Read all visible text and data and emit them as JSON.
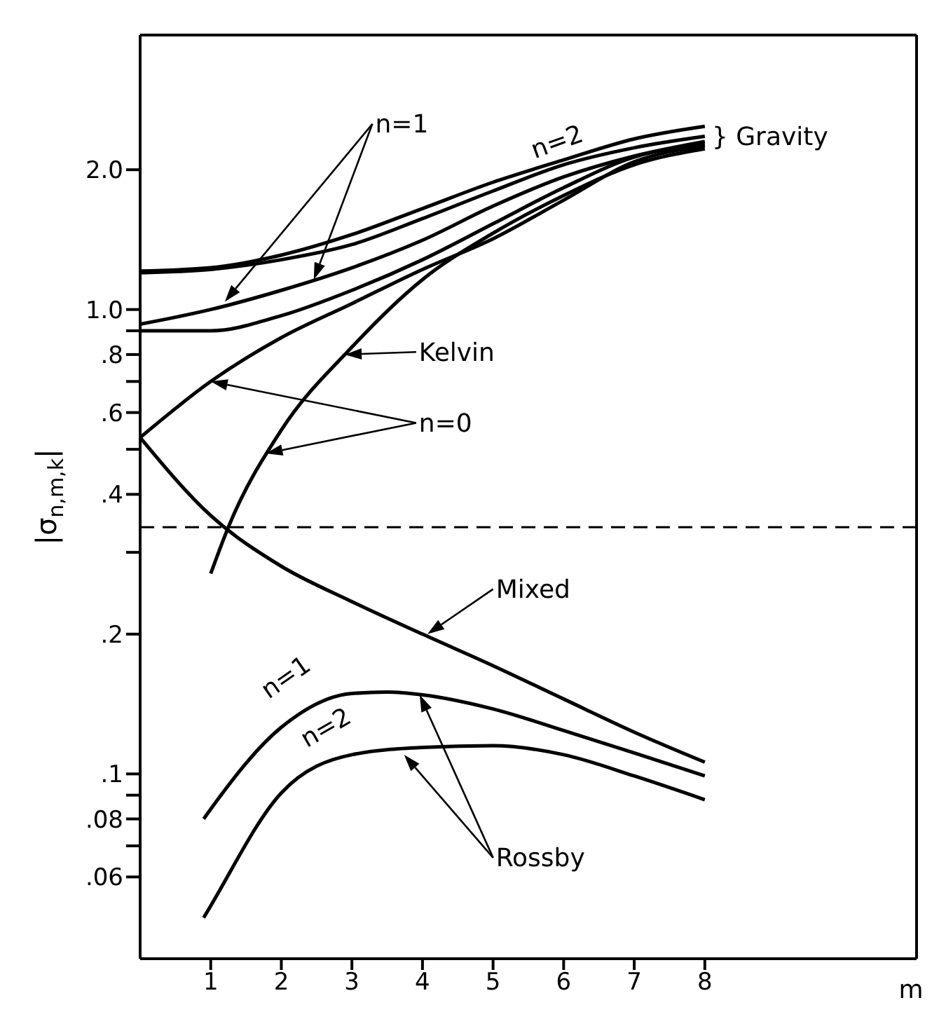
{
  "chart_data": {
    "type": "line",
    "xlabel": "m",
    "ylabel": "|σ$_{n,m,k}$|",
    "log": "y",
    "xlim": [
      0,
      11
    ],
    "xticks": [
      1,
      2,
      3,
      4,
      5,
      6,
      7,
      8
    ],
    "ylim": [
      0.04,
      3.9
    ],
    "yticks": [
      {
        "value": 2,
        "label": "2.0"
      },
      {
        "value": 1,
        "label": "1.0"
      },
      {
        "value": 0.9,
        "label": null
      },
      {
        "value": 0.8,
        "label": ".8"
      },
      {
        "value": 0.7,
        "label": null
      },
      {
        "value": 0.6,
        "label": ".6"
      },
      {
        "value": 0.5,
        "label": null
      },
      {
        "value": 0.4,
        "label": ".4"
      },
      {
        "value": 0.3,
        "label": null
      },
      {
        "value": 0.2,
        "label": ".2"
      },
      {
        "value": 0.1,
        "label": ".1"
      },
      {
        "value": 0.09,
        "label": null
      },
      {
        "value": 0.08,
        "label": ".08"
      },
      {
        "value": 0.07,
        "label": null
      },
      {
        "value": 0.06,
        "label": ".06"
      }
    ],
    "marker": "none",
    "line_style": "solid",
    "series": [
      {
        "color": "#000000",
        "x": [
          0,
          1,
          2,
          3,
          4,
          5,
          6,
          7,
          8
        ],
        "values": [
          1.21,
          1.23,
          1.31,
          1.45,
          1.65,
          1.88,
          2.1,
          2.33,
          2.48
        ]
      },
      {
        "color": "#000000",
        "x": [
          0,
          1,
          2,
          3,
          4,
          5,
          6,
          7,
          8
        ],
        "values": [
          1.2,
          1.22,
          1.28,
          1.38,
          1.57,
          1.8,
          2.05,
          2.23,
          2.36
        ]
      },
      {
        "color": "#000000",
        "x": [
          0,
          1,
          2,
          3,
          4,
          5,
          6,
          7,
          8
        ],
        "values": [
          0.93,
          1.0,
          1.1,
          1.23,
          1.41,
          1.67,
          1.93,
          2.14,
          2.3
        ]
      },
      {
        "color": "#000000",
        "x": [
          0,
          1,
          2,
          3,
          4,
          5,
          6,
          7,
          8
        ],
        "values": [
          0.9,
          0.9,
          0.97,
          1.1,
          1.28,
          1.53,
          1.83,
          2.13,
          2.27
        ]
      },
      {
        "color": "#000000",
        "x": [
          0,
          1,
          2,
          3,
          4,
          5,
          6,
          7,
          8
        ],
        "values": [
          0.53,
          0.7,
          0.87,
          1.03,
          1.22,
          1.42,
          1.72,
          2.08,
          2.25
        ]
      },
      {
        "color": "#000000",
        "x": [
          1,
          1.25,
          2,
          3,
          4,
          5,
          6,
          7,
          8
        ],
        "values": [
          0.27,
          0.34,
          0.55,
          0.83,
          1.16,
          1.46,
          1.76,
          2.05,
          2.22
        ]
      },
      {
        "color": "#000000",
        "x": [
          0,
          1,
          2,
          3,
          4,
          5,
          6,
          7,
          8
        ],
        "values": [
          0.53,
          0.36,
          0.28,
          0.235,
          0.2,
          0.171,
          0.145,
          0.123,
          0.106
        ]
      },
      {
        "color": "#000000",
        "x": [
          0.9,
          1,
          2,
          3,
          3.5,
          4,
          5,
          6,
          7,
          8
        ],
        "values": [
          0.08,
          0.084,
          0.126,
          0.149,
          0.15,
          0.148,
          0.138,
          0.124,
          0.111,
          0.099
        ]
      },
      {
        "color": "#000000",
        "x": [
          0.9,
          1,
          2,
          3,
          4,
          5,
          6,
          7,
          8
        ],
        "values": [
          0.049,
          0.052,
          0.091,
          0.11,
          0.114,
          0.115,
          0.11,
          0.099,
          0.088
        ]
      }
    ],
    "ref_lines": [
      {
        "axis": "y",
        "value": 0.34,
        "line_style": "dashed",
        "color": "#000000"
      }
    ],
    "annotations": [
      "n=1",
      "n=2",
      "} Gravity",
      {
        "text": "Kelvin",
        "x": 2.9,
        "y": 0.8
      },
      "n=0",
      {
        "text": "Mixed",
        "x": 4.07,
        "y": 0.2
      },
      "n=1",
      "n=2",
      "Rossby"
    ]
  }
}
